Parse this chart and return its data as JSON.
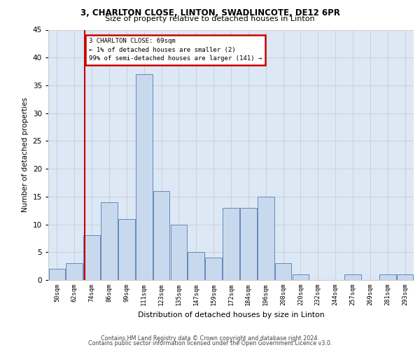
{
  "title1": "3, CHARLTON CLOSE, LINTON, SWADLINCOTE, DE12 6PR",
  "title2": "Size of property relative to detached houses in Linton",
  "xlabel": "Distribution of detached houses by size in Linton",
  "ylabel": "Number of detached properties",
  "bar_labels": [
    "50sqm",
    "62sqm",
    "74sqm",
    "86sqm",
    "99sqm",
    "111sqm",
    "123sqm",
    "135sqm",
    "147sqm",
    "159sqm",
    "172sqm",
    "184sqm",
    "196sqm",
    "208sqm",
    "220sqm",
    "232sqm",
    "244sqm",
    "257sqm",
    "269sqm",
    "281sqm",
    "293sqm"
  ],
  "bar_values": [
    2,
    3,
    8,
    14,
    11,
    37,
    16,
    10,
    5,
    4,
    13,
    13,
    15,
    3,
    1,
    0,
    0,
    1,
    0,
    1,
    1
  ],
  "bar_color": "#c8d9ee",
  "bar_edge_color": "#6688bb",
  "subject_line_label": "3 CHARLTON CLOSE: 69sqm",
  "annotation_line1": "← 1% of detached houses are smaller (2)",
  "annotation_line2": "99% of semi-detached houses are larger (141) →",
  "annotation_box_color": "#ffffff",
  "annotation_box_edge": "#cc0000",
  "subject_line_color": "#cc0000",
  "ylim": [
    0,
    45
  ],
  "yticks": [
    0,
    5,
    10,
    15,
    20,
    25,
    30,
    35,
    40,
    45
  ],
  "grid_color": "#cccccc",
  "bg_color": "#dce8f5",
  "footer1": "Contains HM Land Registry data © Crown copyright and database right 2024.",
  "footer2": "Contains public sector information licensed under the Open Government Licence v3.0.",
  "fig_width": 6.0,
  "fig_height": 5.0,
  "dpi": 100
}
